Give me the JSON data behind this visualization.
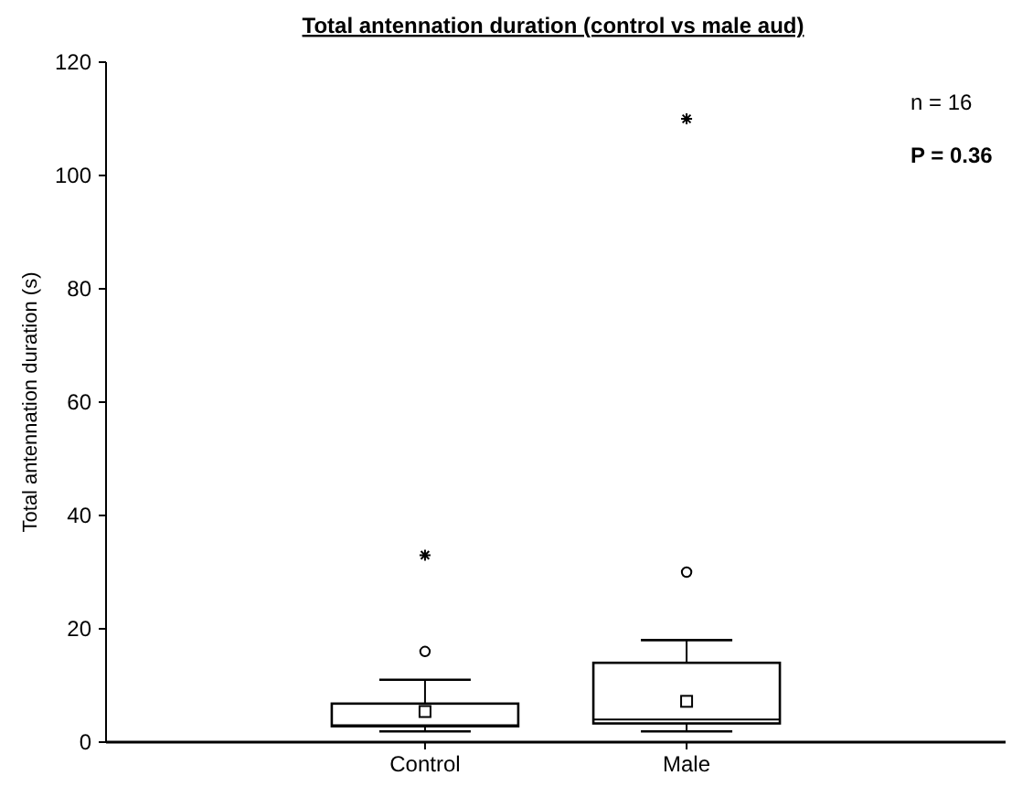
{
  "chart_data": {
    "type": "box",
    "title": "Total antennation duration (control vs male aud)",
    "ylabel": "Total antennation duration (s)",
    "categories": [
      "Control",
      "Male"
    ],
    "boxes": [
      {
        "low": 1.9,
        "q1": 2.8,
        "median": 3,
        "q3": 6.8,
        "high": 11,
        "mean": 5.4,
        "outliers": [
          16,
          33
        ]
      },
      {
        "low": 1.9,
        "q1": 3.3,
        "median": 4,
        "q3": 14,
        "high": 18,
        "mean": 7.2,
        "outliers": [
          30,
          110
        ]
      }
    ],
    "ylim": [
      0,
      120
    ],
    "yticks": [
      0,
      20,
      40,
      60,
      80,
      100,
      120
    ],
    "grid": false,
    "annotations": [
      "n = 16",
      "P = 0.36"
    ]
  }
}
